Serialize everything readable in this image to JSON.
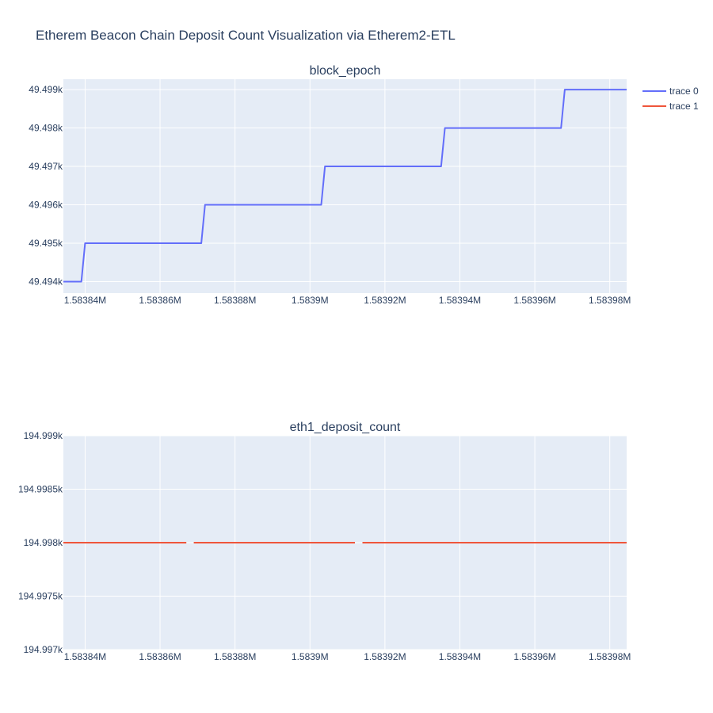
{
  "page": {
    "title": "Etherem Beacon Chain Deposit Count Visualization via Etherem2-ETL"
  },
  "legend": {
    "items": [
      {
        "label": "trace 0",
        "color": "#636efa"
      },
      {
        "label": "trace 1",
        "color": "#ef553b"
      }
    ]
  },
  "colors": {
    "plot_bg": "#e5ecf6",
    "grid": "#ffffff",
    "text": "#2a3f5f"
  },
  "chart_data": [
    {
      "type": "line",
      "title": "block_epoch",
      "series_name": "trace 0",
      "color": "#636efa",
      "line_shape": "steps",
      "xlim": [
        1583834.2,
        1583984.5
      ],
      "ylim": [
        49493.7,
        49499.27
      ],
      "x_ticks": [
        1583840,
        1583860,
        1583880,
        1583900,
        1583920,
        1583940,
        1583960,
        1583980
      ],
      "x_tick_labels": [
        "1.58384M",
        "1.58386M",
        "1.58388M",
        "1.5839M",
        "1.58392M",
        "1.58394M",
        "1.58396M",
        "1.58398M"
      ],
      "y_ticks": [
        49494,
        49495,
        49496,
        49497,
        49498,
        49499
      ],
      "y_tick_labels": [
        "49.494k",
        "49.495k",
        "49.496k",
        "49.497k",
        "49.498k",
        "49.499k"
      ],
      "grid": true,
      "points": [
        [
          1583834.2,
          49494
        ],
        [
          1583839.0,
          49494
        ],
        [
          1583840.0,
          49495
        ],
        [
          1583871.0,
          49495
        ],
        [
          1583872.0,
          49496
        ],
        [
          1583903.0,
          49496
        ],
        [
          1583904.0,
          49497
        ],
        [
          1583935.0,
          49497
        ],
        [
          1583936.0,
          49498
        ],
        [
          1583967.0,
          49498
        ],
        [
          1583968.0,
          49499
        ],
        [
          1583984.5,
          49499
        ]
      ]
    },
    {
      "type": "line",
      "title": "eth1_deposit_count",
      "series_name": "trace 1",
      "color": "#ef553b",
      "xlim": [
        1583834.2,
        1583984.5
      ],
      "ylim": [
        194997,
        194999
      ],
      "x_ticks": [
        1583840,
        1583860,
        1583880,
        1583900,
        1583920,
        1583940,
        1583960,
        1583980
      ],
      "x_tick_labels": [
        "1.58384M",
        "1.58386M",
        "1.58388M",
        "1.5839M",
        "1.58392M",
        "1.58394M",
        "1.58396M",
        "1.58398M"
      ],
      "y_ticks": [
        194997,
        194997.5,
        194998,
        194998.5,
        194999
      ],
      "y_tick_labels": [
        "194.997k",
        "194.9975k",
        "194.998k",
        "194.9985k",
        "194.999k"
      ],
      "grid": true,
      "segments": [
        [
          [
            1583834.2,
            194998
          ],
          [
            1583867.0,
            194998
          ]
        ],
        [
          [
            1583869.0,
            194998
          ],
          [
            1583912.0,
            194998
          ]
        ],
        [
          [
            1583914.0,
            194998
          ],
          [
            1583984.5,
            194998
          ]
        ]
      ]
    }
  ]
}
